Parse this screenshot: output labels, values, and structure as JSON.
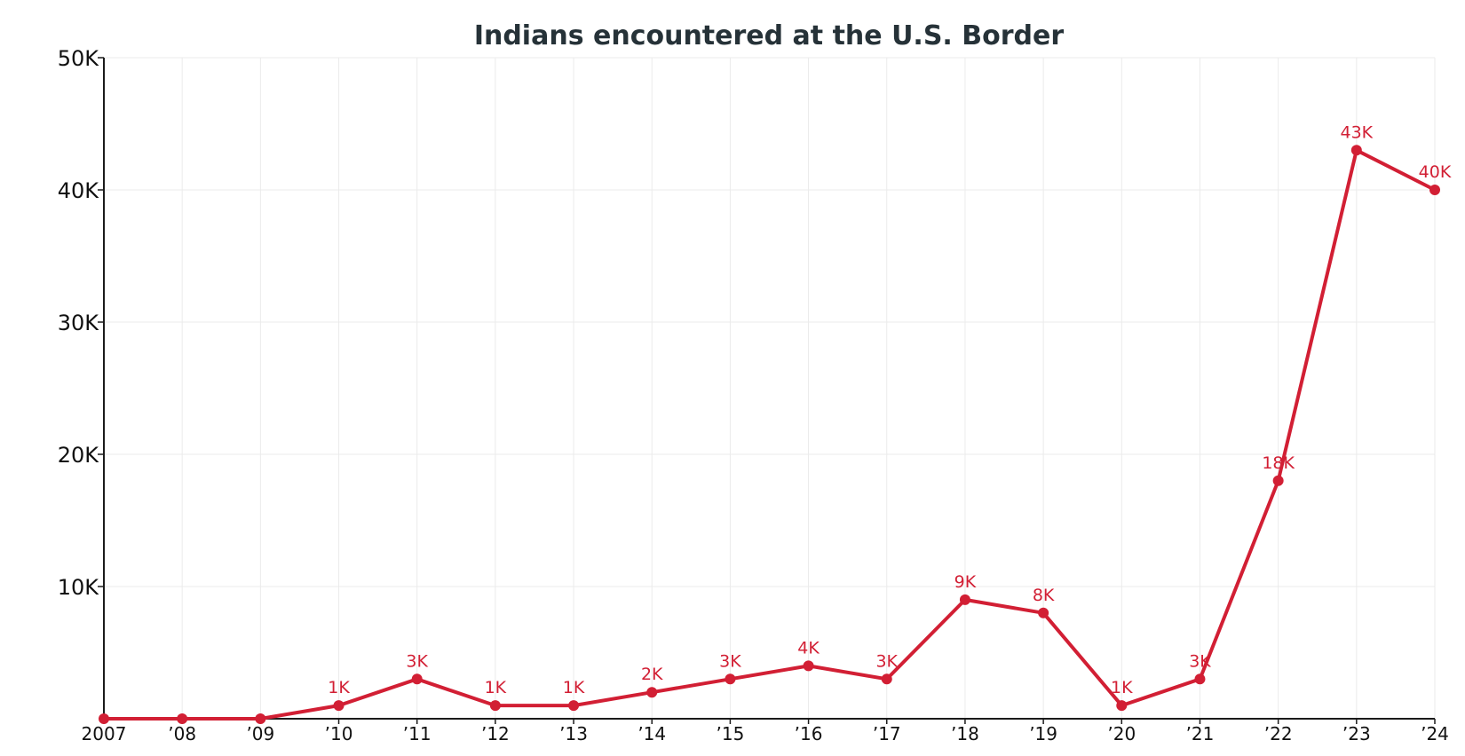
{
  "chart_data": {
    "type": "line",
    "title": "Indians encountered at the U.S. Border",
    "xlabel": "",
    "ylabel": "",
    "categories": [
      "2007",
      "’08",
      "’09",
      "’10",
      "’11",
      "’12",
      "’13",
      "’14",
      "’15",
      "’16",
      "’17",
      "’18",
      "’19",
      "’20",
      "’21",
      "’22",
      "’23",
      "’24"
    ],
    "series": [
      {
        "name": "Indians encountered",
        "color": "#d21f34",
        "values": [
          0,
          0,
          0,
          1000,
          3000,
          1000,
          1000,
          2000,
          3000,
          4000,
          3000,
          9000,
          8000,
          1000,
          3000,
          18000,
          43000,
          40000
        ],
        "labels": [
          "",
          "",
          "",
          "1K",
          "3K",
          "1K",
          "1K",
          "2K",
          "3K",
          "4K",
          "3K",
          "9K",
          "8K",
          "1K",
          "3K",
          "18K",
          "43K",
          "40K"
        ]
      }
    ],
    "ylim": [
      0,
      50000
    ],
    "yticks": [
      10000,
      20000,
      30000,
      40000,
      50000
    ],
    "ytick_labels": [
      "10K",
      "20K",
      "30K",
      "40K",
      "50K"
    ],
    "grid": true,
    "legend": "none"
  }
}
